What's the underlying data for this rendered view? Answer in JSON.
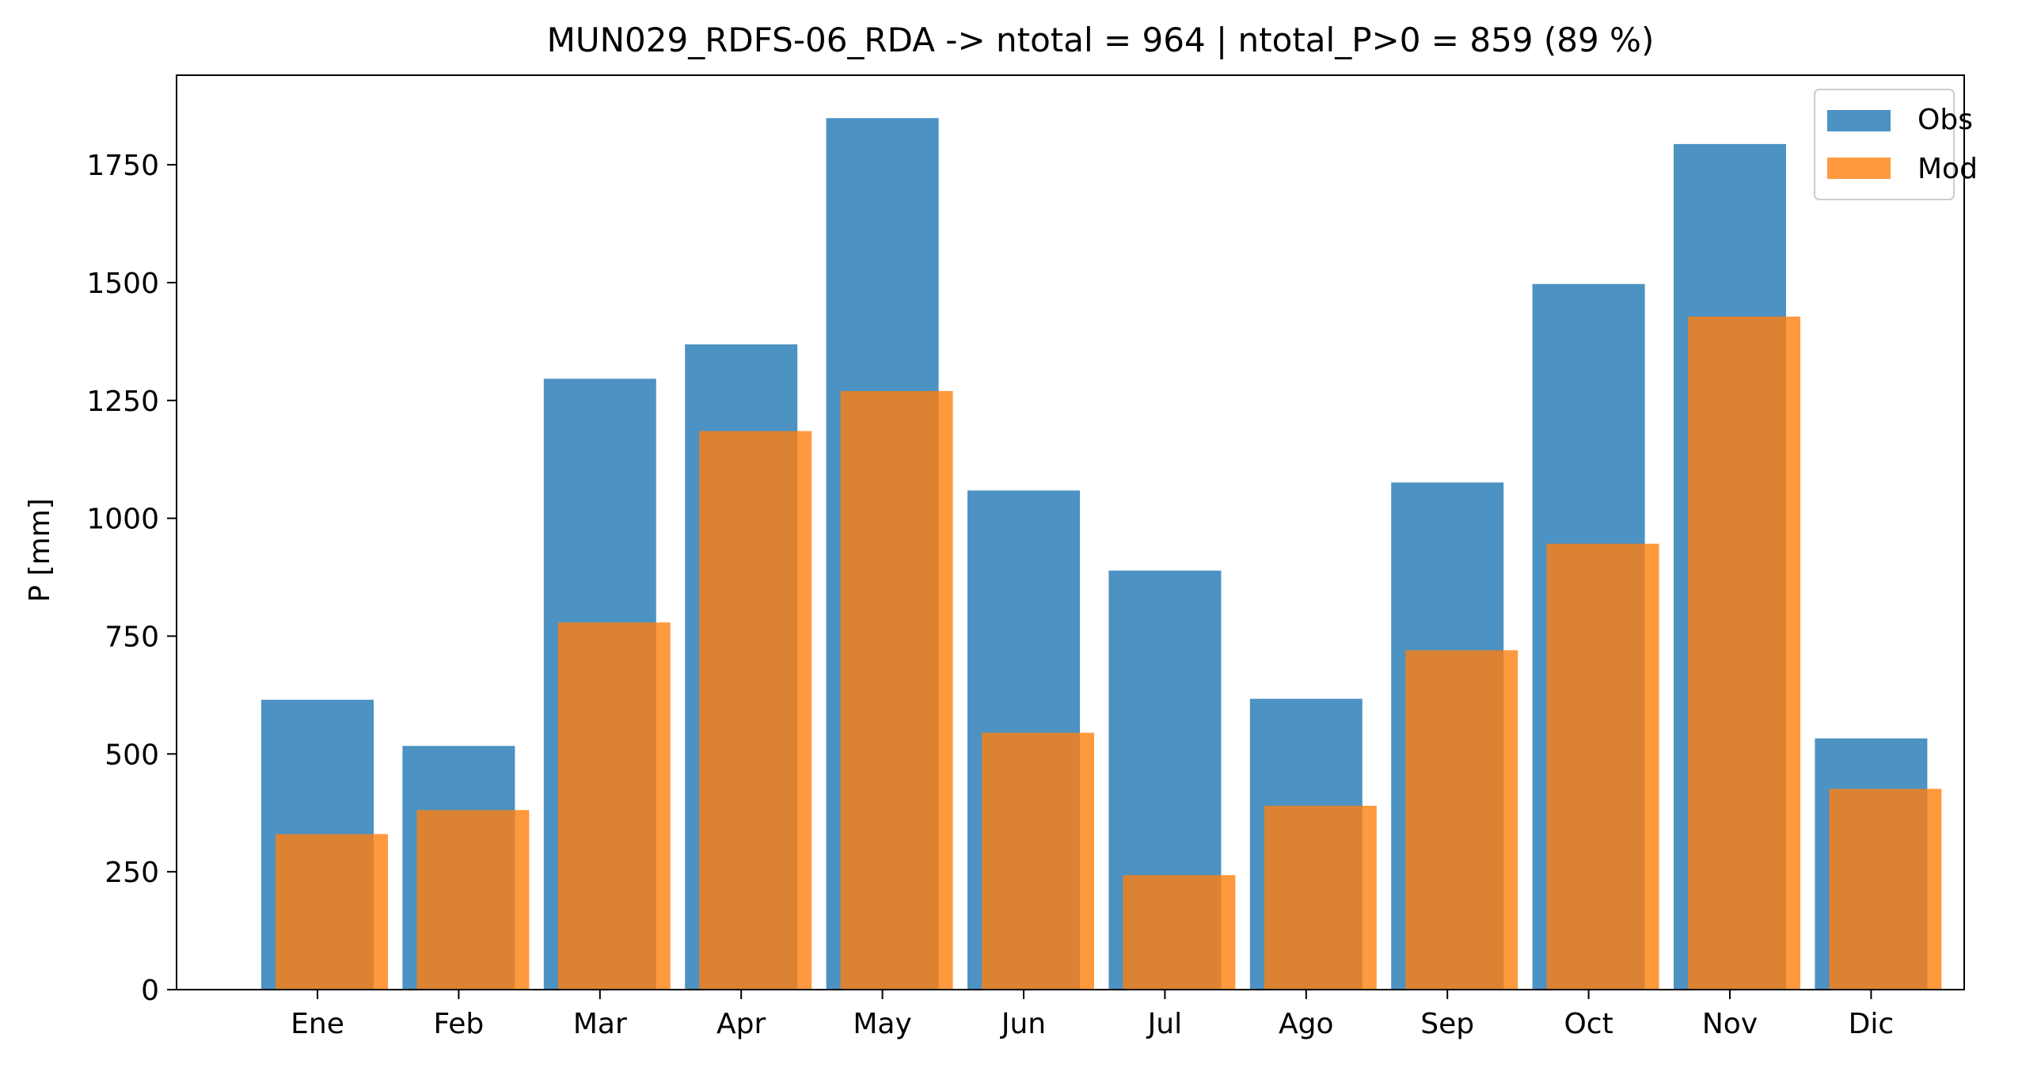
{
  "chart_data": {
    "type": "bar",
    "title": "MUN029_RDFS-06_RDA -> ntotal = 964 | ntotal_P>0 = 859 (89 %)",
    "xlabel": "",
    "ylabel": "P [mm]",
    "categories": [
      "Ene",
      "Feb",
      "Mar",
      "Apr",
      "May",
      "Jun",
      "Jul",
      "Ago",
      "Sep",
      "Oct",
      "Nov",
      "Dic"
    ],
    "series": [
      {
        "name": "Obs",
        "color": "#1f77b4",
        "values": [
          615,
          517,
          1296,
          1369,
          1849,
          1059,
          889,
          617,
          1076,
          1497,
          1794,
          533
        ]
      },
      {
        "name": "Mod",
        "color": "#ff7f0e",
        "values": [
          330,
          381,
          779,
          1185,
          1270,
          545,
          243,
          390,
          720,
          946,
          1428,
          426
        ]
      }
    ],
    "ylim": [
      0,
      1940
    ],
    "yticks": [
      0,
      250,
      500,
      750,
      1000,
      1250,
      1500,
      1750
    ],
    "grid": false,
    "legend_position": "top-right"
  }
}
